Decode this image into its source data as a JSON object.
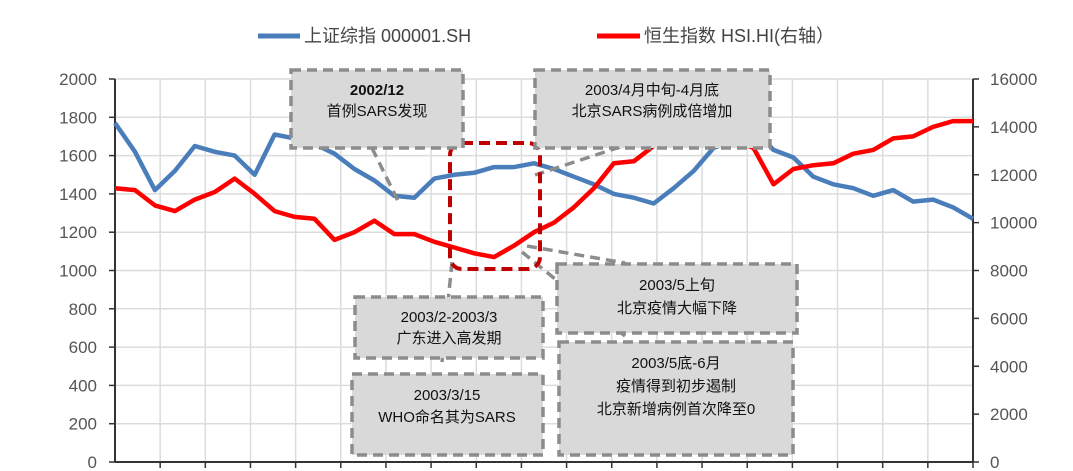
{
  "chart_data": {
    "type": "line",
    "title": "",
    "xlabel": "",
    "ylabel": "",
    "y_left": {
      "range": [
        0,
        2000
      ],
      "ticks": [
        "0",
        "200",
        "400",
        "600",
        "800",
        "1000",
        "1200",
        "1400",
        "1600",
        "1800",
        "2000"
      ]
    },
    "y_right": {
      "range": [
        0,
        16000
      ],
      "ticks": [
        "0",
        "2000",
        "4000",
        "6000",
        "8000",
        "10000",
        "12000",
        "14000",
        "16000"
      ]
    },
    "grid": true,
    "legend_position": "top",
    "series": [
      {
        "name": "上证综指 000001.SH",
        "axis": "left",
        "color": "#4a7ebb",
        "values": [
          1770,
          1620,
          1420,
          1520,
          1650,
          1620,
          1600,
          1500,
          1710,
          1690,
          1660,
          1610,
          1530,
          1470,
          1390,
          1380,
          1480,
          1500,
          1510,
          1540,
          1540,
          1560,
          1530,
          1490,
          1450,
          1400,
          1380,
          1350,
          1430,
          1520,
          1640,
          1680,
          1740,
          1630,
          1590,
          1490,
          1450,
          1430,
          1390,
          1420,
          1360,
          1370,
          1330,
          1270
        ]
      },
      {
        "name": "恒生指数 HSI.HI(右轴）",
        "axis": "right",
        "color": "#ff0000",
        "values": [
          11440,
          11360,
          10720,
          10480,
          10960,
          11280,
          11840,
          11200,
          10480,
          10240,
          10160,
          9280,
          9600,
          10080,
          9520,
          9520,
          9200,
          8960,
          8720,
          8560,
          9040,
          9600,
          10000,
          10640,
          11440,
          12480,
          12560,
          13200,
          14320,
          14400,
          14560,
          13440,
          13120,
          11600,
          12240,
          12400,
          12480,
          12880,
          13040,
          13520,
          13600,
          14000,
          14240,
          14240
        ]
      }
    ],
    "annotations": [
      {
        "lines": [
          "2002/12",
          "首例SARS发现"
        ]
      },
      {
        "lines": [
          "2003/4月中旬-4月底",
          "北京SARS病例成倍增加"
        ]
      },
      {
        "lines": [
          "2003/5上旬",
          "北京疫情大幅下降"
        ]
      },
      {
        "lines": [
          "2003/2-2003/3",
          "广东进入高发期"
        ]
      },
      {
        "lines": [
          "2003/3/15",
          "WHO命名其为SARS"
        ]
      },
      {
        "lines": [
          "2003/5底-6月",
          "疫情得到初步遏制",
          "北京新增病例首次降至0"
        ]
      }
    ],
    "highlight_color": "#c00000"
  }
}
